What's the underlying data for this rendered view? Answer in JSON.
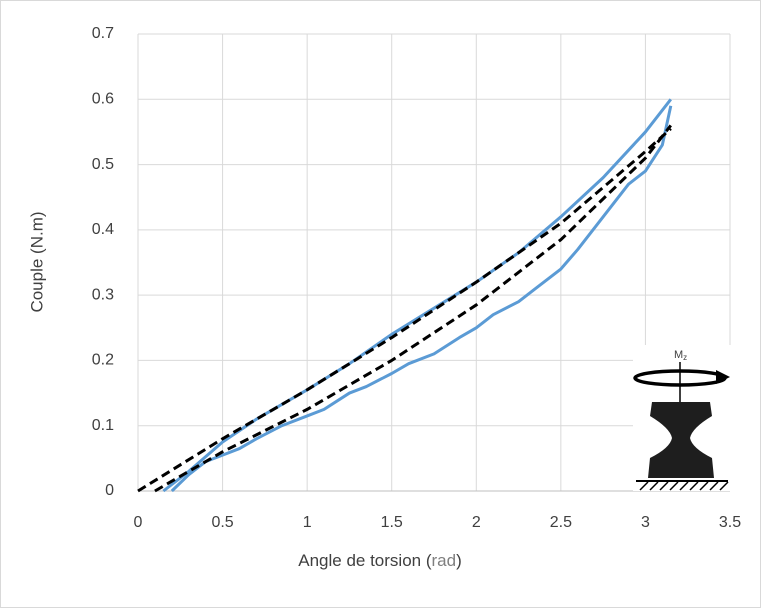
{
  "chart_data": {
    "type": "line",
    "x_label_parts": [
      "Angle de torsion (",
      "rad",
      ")"
    ],
    "y_label": "Couple (N.m)",
    "xlim": [
      0,
      3.5
    ],
    "xticks": [
      0,
      0.5,
      1,
      1.5,
      2,
      2.5,
      3,
      3.5
    ],
    "ylim": [
      0,
      0.7
    ],
    "yticks": [
      0,
      0.1,
      0.2,
      0.3,
      0.4,
      0.5,
      0.6,
      0.7
    ],
    "grid": true,
    "inset": {
      "label": "M",
      "subscript": "z"
    },
    "series": [
      {
        "color": "#5b9bd5",
        "dash": false,
        "x": [
          0.15,
          0.3,
          0.5,
          0.7,
          1,
          1.25,
          1.5,
          1.75,
          2,
          2.25,
          2.5,
          2.75,
          3,
          3.15
        ],
        "values": [
          0,
          0.03,
          0.075,
          0.11,
          0.155,
          0.195,
          0.24,
          0.28,
          0.32,
          0.365,
          0.42,
          0.48,
          0.55,
          0.6
        ]
      },
      {
        "color": "#5b9bd5",
        "dash": false,
        "x": [
          3.15,
          3.1,
          3,
          2.9,
          2.75,
          2.6,
          2.5,
          2.35,
          2.25,
          2.1,
          2,
          1.9,
          1.75,
          1.6,
          1.5,
          1.35,
          1.25,
          1.1,
          1,
          0.85,
          0.7,
          0.6,
          0.5,
          0.4,
          0.3,
          0.2
        ],
        "values": [
          0.59,
          0.53,
          0.49,
          0.47,
          0.42,
          0.37,
          0.34,
          0.31,
          0.29,
          0.27,
          0.25,
          0.235,
          0.21,
          0.195,
          0.18,
          0.16,
          0.15,
          0.125,
          0.115,
          0.1,
          0.08,
          0.065,
          0.055,
          0.045,
          0.025,
          0
        ]
      },
      {
        "color": "#000000",
        "dash": true,
        "x": [
          0,
          0.5,
          1,
          1.5,
          2,
          2.5,
          3,
          3.15
        ],
        "values": [
          0,
          0.08,
          0.155,
          0.235,
          0.32,
          0.41,
          0.52,
          0.555
        ]
      },
      {
        "color": "#000000",
        "dash": true,
        "x": [
          0.1,
          0.5,
          1,
          1.5,
          2,
          2.5,
          3,
          3.15
        ],
        "values": [
          0,
          0.06,
          0.125,
          0.2,
          0.285,
          0.385,
          0.51,
          0.56
        ]
      }
    ]
  }
}
